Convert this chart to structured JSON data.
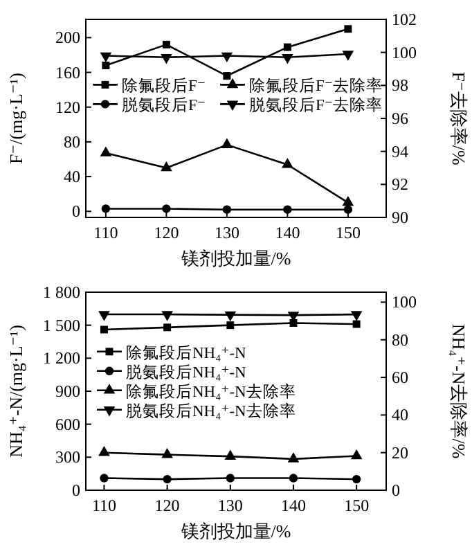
{
  "chart_data": [
    {
      "type": "line",
      "xlabel": "镁剂投加量/%",
      "ylabel": "F⁻/(mg·L⁻¹)",
      "y2label": "F⁻去除率/%",
      "x": [
        110,
        120,
        130,
        140,
        150
      ],
      "xlim": [
        106.7,
        156.3
      ],
      "xticks": [
        110,
        120,
        130,
        140,
        150
      ],
      "ylim": [
        -7,
        221
      ],
      "yticks": [
        0,
        40,
        80,
        120,
        160,
        200
      ],
      "y2lim": [
        90,
        102
      ],
      "y2ticks": [
        90,
        92,
        94,
        96,
        98,
        100,
        102
      ],
      "legend": "right",
      "line_style": "solid",
      "grid": false,
      "series": [
        {
          "name": "除氟段后F⁻",
          "color": "#000000",
          "marker": "square",
          "values": [
            168,
            192,
            156,
            189,
            210
          ]
        },
        {
          "name": "脱氨段后F⁻",
          "color": "#000000",
          "marker": "circle",
          "values": [
            3,
            3,
            2,
            2,
            2
          ]
        },
        {
          "name": "除氟段后F⁻去除率",
          "color": "#000000",
          "marker": "triangle",
          "axis": "y2",
          "values": [
            93.9,
            93.0,
            94.4,
            93.2,
            90.9
          ]
        },
        {
          "name": "脱氨段后F⁻去除率",
          "color": "#000000",
          "marker": "triangle-down",
          "axis": "y2",
          "values": [
            99.8,
            99.7,
            99.8,
            99.7,
            99.9
          ]
        }
      ]
    },
    {
      "type": "line",
      "xlabel": "镁剂投加量/%",
      "ylabel": "NH₄⁺-N/(mg·L⁻¹)",
      "y2label": "NH₄⁺-N去除率/%",
      "x": [
        110,
        120,
        130,
        140,
        150
      ],
      "xlim": [
        107.1,
        154.7
      ],
      "xticks": [
        110,
        120,
        130,
        140,
        150
      ],
      "ylim": [
        0,
        1800
      ],
      "yticks": [
        0,
        300,
        600,
        900,
        {
          "value": 1200,
          "label": "1 200"
        },
        {
          "value": 1500,
          "label": "1 500"
        },
        {
          "value": 1800,
          "label": "1 800"
        }
      ],
      "y2lim": [
        0,
        105.3
      ],
      "y2ticks": [
        0,
        20,
        40,
        60,
        80,
        100
      ],
      "legend": "left",
      "line_style": "solid",
      "grid": false,
      "series": [
        {
          "name": "除氟段后NH₄⁺-N",
          "color": "#000000",
          "marker": "square",
          "values": [
            1460,
            1480,
            1500,
            1520,
            1510
          ]
        },
        {
          "name": "脱氨段后NH₄⁺-N",
          "color": "#000000",
          "marker": "circle",
          "values": [
            110,
            100,
            110,
            110,
            100
          ]
        },
        {
          "name": "除氟段后NH₄⁺-N去除率",
          "color": "#000000",
          "marker": "triangle",
          "axis": "y2",
          "values": [
            20.0,
            18.9,
            18.0,
            16.6,
            18.2
          ]
        },
        {
          "name": "脱氨段后NH₄⁺-N去除率",
          "color": "#000000",
          "marker": "triangle-down",
          "axis": "y2",
          "values": [
            93.5,
            93.5,
            93.3,
            93.1,
            93.5
          ]
        }
      ]
    }
  ]
}
